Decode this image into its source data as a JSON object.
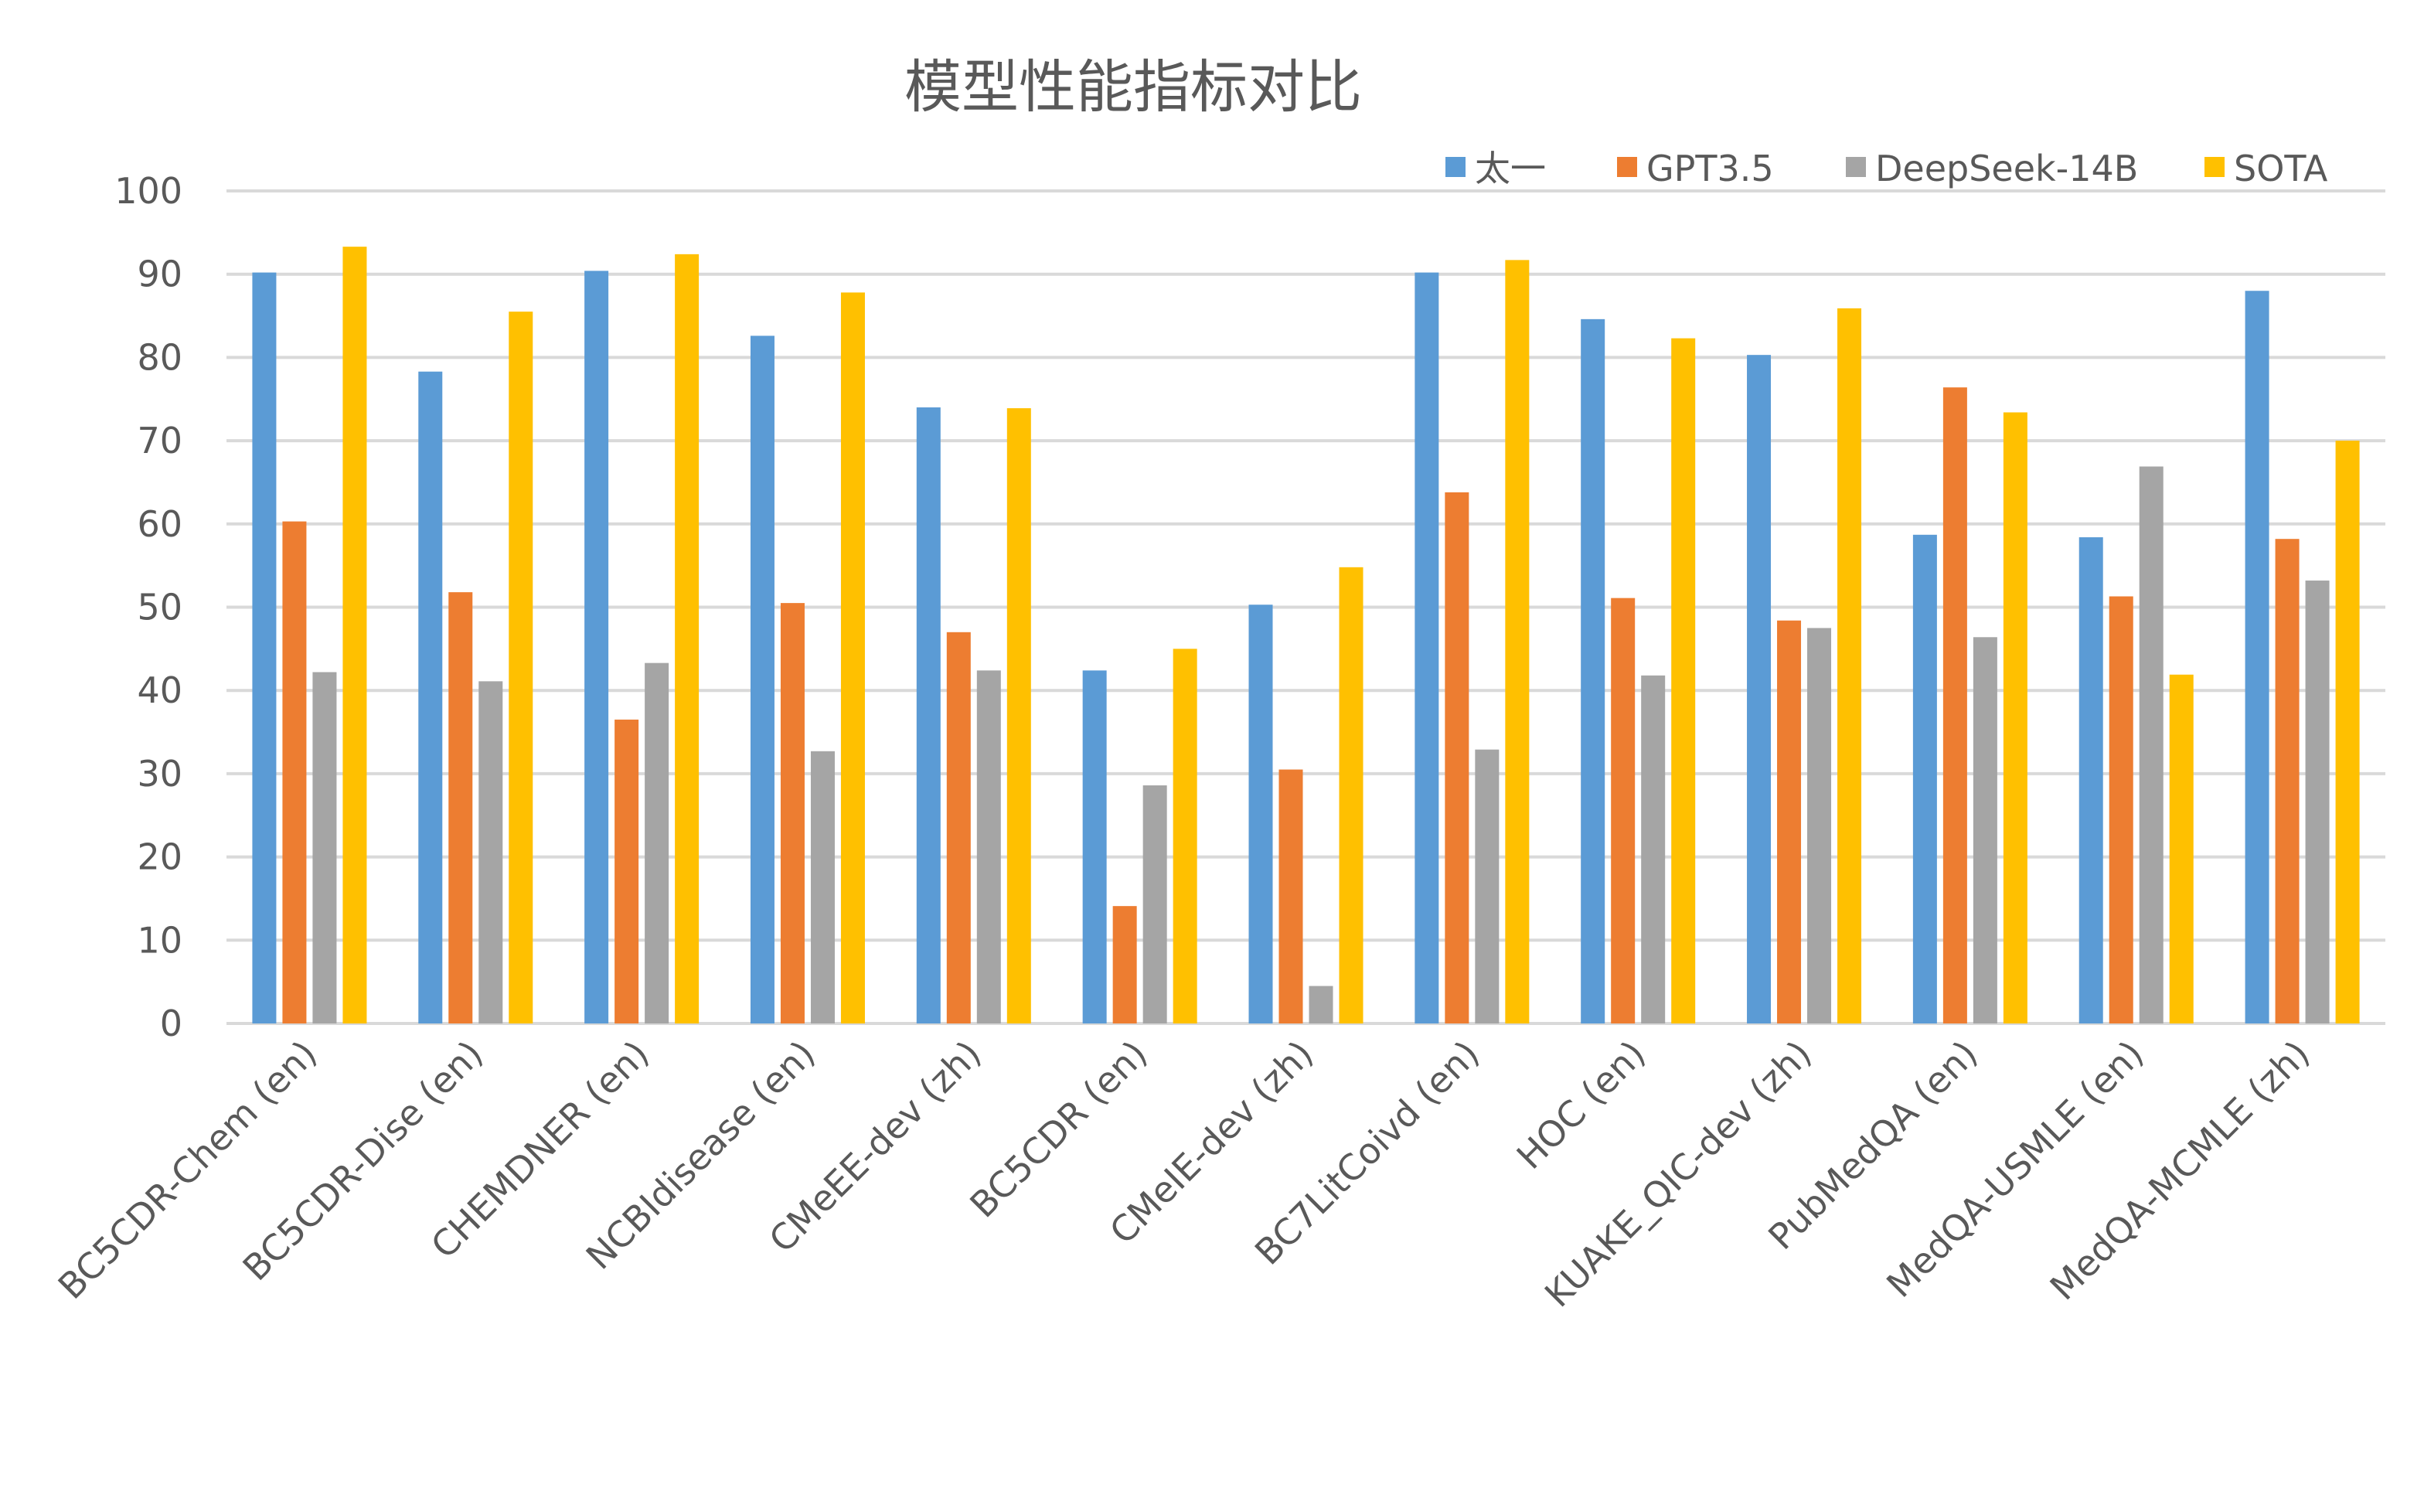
{
  "chart_data": {
    "type": "bar",
    "title": "模型性能指标对比",
    "xlabel": "",
    "ylabel": "",
    "ylim": [
      0,
      100
    ],
    "yticks": [
      "0",
      "10",
      "20",
      "30",
      "40",
      "50",
      "60",
      "70",
      "80",
      "90",
      "100"
    ],
    "grid": true,
    "legend_position": "top-right",
    "categories": [
      "BC5CDR-Chem (en)",
      "BC5CDR-Dise (en)",
      "CHEMDNER (en)",
      "NCBIdisease (en)",
      "CMeEE-dev (zh)",
      "BC5CDR (en)",
      "CMeIE-dev (zh)",
      "BC7LitCoivd (en)",
      "HOC (en)",
      "KUAKE_QIC-dev (zh)",
      "PubMedQA (en)",
      "MedQA-USMLE (en)",
      "MedQA-MCMLE (zh)"
    ],
    "series": [
      {
        "name": "太一",
        "color": "#5b9bd5",
        "values": [
          90.2,
          78.3,
          90.4,
          82.6,
          74.0,
          42.4,
          50.3,
          90.2,
          84.6,
          80.3,
          58.7,
          58.4,
          88.0
        ]
      },
      {
        "name": "GPT3.5",
        "color": "#ed7d31",
        "values": [
          60.3,
          51.8,
          36.5,
          50.5,
          47.0,
          14.1,
          30.5,
          63.8,
          51.1,
          48.4,
          76.4,
          51.3,
          58.2
        ]
      },
      {
        "name": "DeepSeek-14B",
        "color": "#a5a5a5",
        "values": [
          42.2,
          41.1,
          43.3,
          32.7,
          42.4,
          28.6,
          4.5,
          32.9,
          41.8,
          47.5,
          46.4,
          66.9,
          53.2
        ]
      },
      {
        "name": "SOTA",
        "color": "#ffc000",
        "values": [
          93.3,
          85.5,
          92.4,
          87.8,
          73.9,
          45.0,
          54.8,
          91.7,
          82.3,
          85.9,
          73.4,
          41.9,
          70.0
        ]
      }
    ]
  }
}
